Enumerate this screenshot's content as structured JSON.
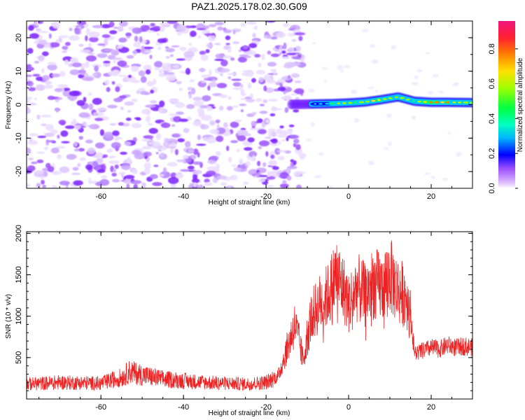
{
  "title": "PAZ1.2025.178.02.30.G09",
  "chart_data": [
    {
      "type": "heatmap",
      "xlabel": "Height of straight line (km)",
      "ylabel": "Frequency (Hz)",
      "xlim": [
        -78,
        30
      ],
      "ylim": [
        -25,
        25
      ],
      "x_ticks": [
        -60,
        -40,
        -20,
        0,
        20
      ],
      "y_ticks": [
        -20,
        -10,
        0,
        10,
        20
      ],
      "colorbar": {
        "label": "Normalized spectral amplitude",
        "range": [
          0,
          0.96
        ],
        "ticks": [
          0.0,
          0.2,
          0.4,
          0.6,
          0.8
        ],
        "colormap": [
          "#ffffff",
          "#d9b3ff",
          "#9a4dff",
          "#5a00e0",
          "#0000ff",
          "#00c8ff",
          "#00ff90",
          "#3cff00",
          "#d2ff00",
          "#ffd000",
          "#ff7000",
          "#ff2040",
          "#f01880"
        ]
      },
      "noise_region": {
        "x_range": [
          -78,
          -11
        ],
        "freq_range": [
          -25,
          25
        ],
        "typical_amplitude": [
          0.0,
          0.15
        ]
      },
      "signal_trace": {
        "x": [
          -12,
          -8,
          -4,
          0,
          4,
          8,
          12,
          16,
          20,
          24,
          30
        ],
        "freq": [
          0.1,
          0.2,
          0.3,
          0.5,
          0.8,
          1.5,
          2.3,
          1.0,
          0.7,
          0.7,
          0.6
        ],
        "amplitude": [
          0.1,
          0.45,
          0.7,
          0.75,
          0.8,
          0.75,
          0.7,
          0.65,
          0.9,
          0.85,
          0.7
        ]
      }
    },
    {
      "type": "line",
      "xlabel": "Height of straight line (km)",
      "ylabel": "SNR (10 * v/v)",
      "xlim": [
        -78,
        30
      ],
      "ylim": [
        0,
        2020
      ],
      "x_ticks": [
        -60,
        -40,
        -20,
        0,
        20
      ],
      "y_ticks": [
        500,
        1000,
        1500,
        2000
      ],
      "series": [
        {
          "color": "#ee2222",
          "x": [
            -78,
            -70,
            -60,
            -55,
            -53,
            -50,
            -45,
            -40,
            -35,
            -30,
            -25,
            -20,
            -17,
            -15,
            -13,
            -12,
            -11,
            -10,
            -9,
            -7,
            -5,
            -3,
            -1,
            0,
            2,
            4,
            6,
            8,
            10,
            12,
            14,
            15,
            16,
            18,
            20,
            22,
            24,
            26,
            28,
            30
          ],
          "y": [
            180,
            200,
            190,
            260,
            330,
            290,
            240,
            220,
            200,
            190,
            180,
            200,
            280,
            600,
            900,
            700,
            450,
            800,
            1000,
            1150,
            1250,
            1500,
            1300,
            1150,
            1350,
            1250,
            1400,
            1350,
            1500,
            1300,
            1250,
            1000,
            550,
            580,
            620,
            600,
            650,
            620,
            640,
            620
          ]
        }
      ]
    }
  ],
  "colors": {
    "frame": "#000000",
    "trace": "#ee2222",
    "background": "#ffffff"
  }
}
